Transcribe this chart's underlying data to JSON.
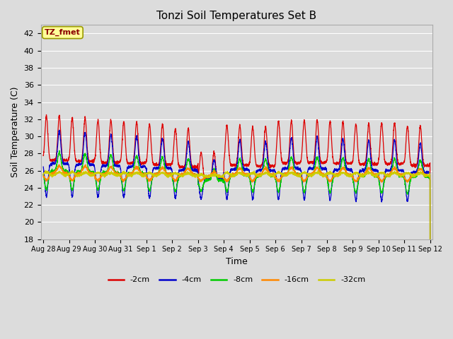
{
  "title": "Tonzi Soil Temperatures Set B",
  "xlabel": "Time",
  "ylabel": "Soil Temperature (C)",
  "ylim": [
    18,
    43
  ],
  "yticks": [
    18,
    20,
    22,
    24,
    26,
    28,
    30,
    32,
    34,
    36,
    38,
    40,
    42
  ],
  "tick_labels": [
    "Aug 28",
    "Aug 29",
    "Aug 30",
    "Aug 31",
    "Sep 1",
    "Sep 2",
    "Sep 3",
    "Sep 4",
    "Sep 5",
    "Sep 6",
    "Sep 7",
    "Sep 8",
    "Sep 9",
    "Sep 10",
    "Sep 11",
    "Sep 12"
  ],
  "num_days": 15,
  "pts_per_day": 240,
  "series": [
    {
      "label": "-2cm",
      "color": "#dd0000",
      "amplitude": 10.2,
      "mean": 31.5,
      "phase": 0.0,
      "sharpness": 4.0,
      "amp_mod": 0.18,
      "trend": -0.05
    },
    {
      "label": "-4cm",
      "color": "#0000cc",
      "amplitude": 7.5,
      "mean": 30.5,
      "phase": 0.12,
      "sharpness": 3.5,
      "amp_mod": 0.15,
      "trend": -0.04
    },
    {
      "label": "-8cm",
      "color": "#00cc00",
      "amplitude": 4.2,
      "mean": 28.0,
      "phase": 0.3,
      "sharpness": 2.5,
      "amp_mod": 0.12,
      "trend": -0.03
    },
    {
      "label": "-16cm",
      "color": "#ff8800",
      "amplitude": 1.6,
      "mean": 26.5,
      "phase": 0.7,
      "sharpness": 1.5,
      "amp_mod": 0.08,
      "trend": -0.01
    },
    {
      "label": "-32cm",
      "color": "#cccc00",
      "amplitude": 0.75,
      "mean": 25.8,
      "phase": 1.3,
      "sharpness": 1.2,
      "amp_mod": 0.04,
      "trend": 0.0
    }
  ],
  "bg_color": "#dcdcdc",
  "plot_bg_color": "#dcdcdc",
  "grid_color": "#ffffff",
  "annotation_text": "TZ_fmet",
  "legend_colors": [
    "#dd0000",
    "#0000cc",
    "#00cc00",
    "#ff8800",
    "#cccc00"
  ],
  "legend_labels": [
    "-2cm",
    "-4cm",
    "-8cm",
    "-16cm",
    "-32cm"
  ]
}
